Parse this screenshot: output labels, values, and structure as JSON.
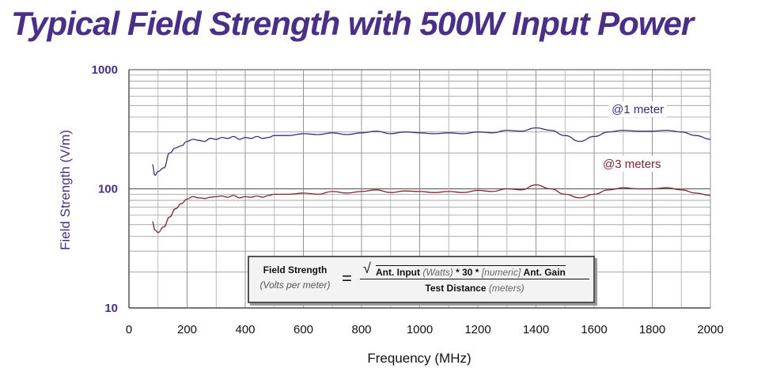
{
  "chart_data": {
    "type": "line",
    "title": "Typical Field Strength with 500W Input Power",
    "xlabel": "Frequency (MHz)",
    "ylabel": "Field Strength (V/m)",
    "xlim": [
      0,
      2000
    ],
    "ylim": [
      10,
      1000
    ],
    "yscale": "log",
    "grid": true,
    "x_ticks": [
      "0",
      "200",
      "400",
      "600",
      "800",
      "1000",
      "1200",
      "1400",
      "1600",
      "1800",
      "2000"
    ],
    "y_ticks": [
      "10",
      "100",
      "1000"
    ],
    "series": [
      {
        "name": "@1 meter",
        "color": "#3a2f78",
        "points": [
          [
            80,
            160
          ],
          [
            90,
            130
          ],
          [
            100,
            140
          ],
          [
            120,
            150
          ],
          [
            140,
            200
          ],
          [
            160,
            220
          ],
          [
            180,
            230
          ],
          [
            200,
            250
          ],
          [
            220,
            260
          ],
          [
            240,
            255
          ],
          [
            260,
            250
          ],
          [
            280,
            265
          ],
          [
            300,
            260
          ],
          [
            320,
            270
          ],
          [
            340,
            265
          ],
          [
            360,
            275
          ],
          [
            380,
            260
          ],
          [
            400,
            270
          ],
          [
            420,
            265
          ],
          [
            440,
            275
          ],
          [
            460,
            265
          ],
          [
            480,
            270
          ],
          [
            500,
            280
          ],
          [
            550,
            280
          ],
          [
            600,
            290
          ],
          [
            650,
            285
          ],
          [
            700,
            295
          ],
          [
            750,
            285
          ],
          [
            800,
            295
          ],
          [
            850,
            305
          ],
          [
            900,
            290
          ],
          [
            950,
            300
          ],
          [
            1000,
            295
          ],
          [
            1050,
            290
          ],
          [
            1100,
            295
          ],
          [
            1150,
            290
          ],
          [
            1200,
            300
          ],
          [
            1250,
            295
          ],
          [
            1300,
            310
          ],
          [
            1350,
            305
          ],
          [
            1400,
            325
          ],
          [
            1450,
            310
          ],
          [
            1500,
            280
          ],
          [
            1550,
            250
          ],
          [
            1600,
            275
          ],
          [
            1650,
            300
          ],
          [
            1700,
            310
          ],
          [
            1750,
            305
          ],
          [
            1800,
            305
          ],
          [
            1850,
            310
          ],
          [
            1900,
            300
          ],
          [
            1950,
            280
          ],
          [
            2000,
            260
          ]
        ]
      },
      {
        "name": "@3 meters",
        "color": "#7a2630",
        "points": [
          [
            80,
            53
          ],
          [
            90,
            45
          ],
          [
            100,
            43
          ],
          [
            120,
            48
          ],
          [
            140,
            58
          ],
          [
            160,
            68
          ],
          [
            180,
            75
          ],
          [
            200,
            82
          ],
          [
            220,
            86
          ],
          [
            240,
            84
          ],
          [
            260,
            83
          ],
          [
            280,
            85
          ],
          [
            300,
            86
          ],
          [
            320,
            87
          ],
          [
            340,
            85
          ],
          [
            360,
            88
          ],
          [
            380,
            84
          ],
          [
            400,
            86
          ],
          [
            420,
            85
          ],
          [
            440,
            87
          ],
          [
            460,
            85
          ],
          [
            480,
            88
          ],
          [
            500,
            90
          ],
          [
            550,
            90
          ],
          [
            600,
            92
          ],
          [
            650,
            90
          ],
          [
            700,
            95
          ],
          [
            750,
            92
          ],
          [
            800,
            95
          ],
          [
            850,
            98
          ],
          [
            900,
            93
          ],
          [
            950,
            96
          ],
          [
            1000,
            95
          ],
          [
            1050,
            93
          ],
          [
            1100,
            95
          ],
          [
            1150,
            93
          ],
          [
            1200,
            97
          ],
          [
            1250,
            95
          ],
          [
            1300,
            100
          ],
          [
            1350,
            98
          ],
          [
            1400,
            108
          ],
          [
            1450,
            100
          ],
          [
            1500,
            90
          ],
          [
            1550,
            84
          ],
          [
            1600,
            90
          ],
          [
            1650,
            98
          ],
          [
            1700,
            102
          ],
          [
            1750,
            100
          ],
          [
            1800,
            100
          ],
          [
            1850,
            102
          ],
          [
            1900,
            98
          ],
          [
            1950,
            92
          ],
          [
            2000,
            88
          ]
        ]
      }
    ],
    "annotations": [
      "@1 meter",
      "@3 meters"
    ]
  },
  "formula": {
    "lhs_title": "Field Strength",
    "lhs_units": "(Volts per meter)",
    "equals": "=",
    "num_a": "Ant. Input",
    "num_b": "(Watts)",
    "num_c": "* 30 *",
    "num_d": "[numeric]",
    "num_e": "Ant. Gain",
    "den_a": "Test Distance",
    "den_b": "(meters)"
  }
}
